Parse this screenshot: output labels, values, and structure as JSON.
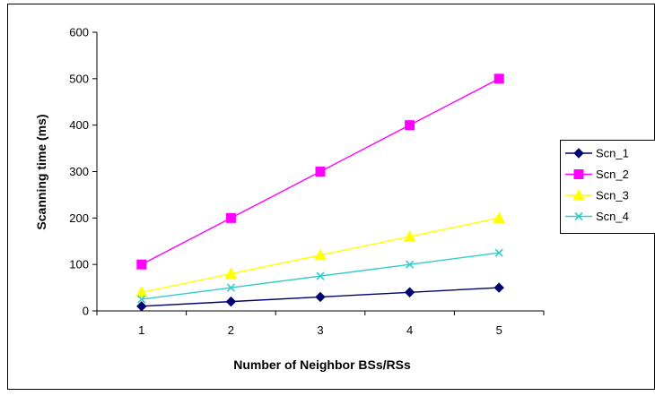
{
  "chart_data": {
    "type": "line",
    "title": "",
    "xlabel": "Number of Neighbor BSs/RSs",
    "ylabel": "Scanning time (ms)",
    "x": [
      1,
      2,
      3,
      4,
      5
    ],
    "x_tick_labels": [
      "1",
      "2",
      "3",
      "4",
      "5"
    ],
    "ylim": [
      0,
      600
    ],
    "y_ticks": [
      0,
      100,
      200,
      300,
      400,
      500,
      600
    ],
    "y_tick_labels": [
      "0",
      "100",
      "200",
      "300",
      "400",
      "500",
      "600"
    ],
    "grid": false,
    "legend_position": "right",
    "series": [
      {
        "name": "Scn_1",
        "values": [
          10,
          20,
          30,
          40,
          50
        ],
        "color": "#00006e",
        "marker": "diamond"
      },
      {
        "name": "Scn_2",
        "values": [
          100,
          200,
          300,
          400,
          500
        ],
        "color": "#ff00ff",
        "marker": "square"
      },
      {
        "name": "Scn_3",
        "values": [
          40,
          80,
          120,
          160,
          200
        ],
        "color": "#ffff00",
        "marker": "triangle"
      },
      {
        "name": "Scn_4",
        "values": [
          25,
          50,
          75,
          100,
          125
        ],
        "color": "#33cccc",
        "marker": "x"
      }
    ]
  }
}
